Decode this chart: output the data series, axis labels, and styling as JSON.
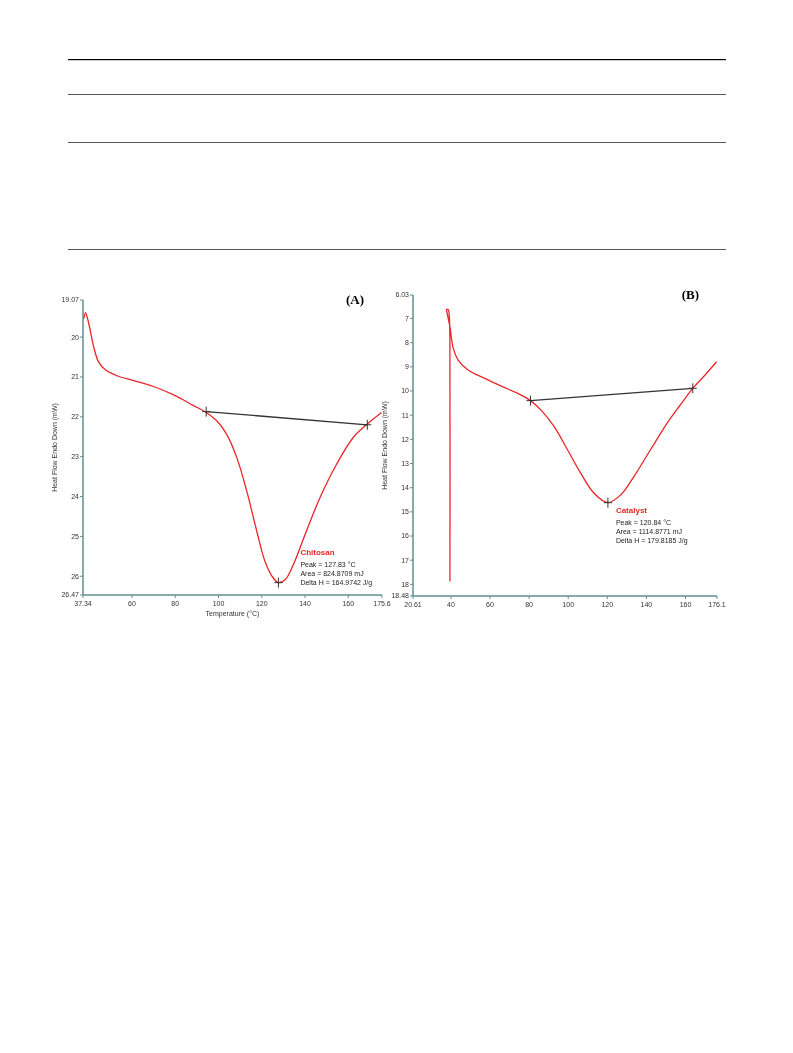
{
  "chart_data": [
    {
      "type": "line",
      "title": "(A)",
      "xlabel": "Temperature (°C)",
      "ylabel": "Heat Flow Endo Down (mW)",
      "xlim": [
        37.34,
        175.6
      ],
      "xticks": [
        37.34,
        60,
        80,
        100,
        120,
        140,
        160,
        175.6
      ],
      "ylim": [
        26.47,
        19.07
      ],
      "yticks": [
        19.07,
        20,
        21,
        22,
        23,
        24,
        25,
        26,
        26.47
      ],
      "grid": false,
      "annotations": [
        "Chitosan",
        "Peak = 127.83 °C",
        "Area = 824.8709 mJ",
        "Delta H = 164.9742 J/g"
      ],
      "series": [
        {
          "color": "#e8262a",
          "marker": "none",
          "x": [
            37.7,
            38.5,
            40.0,
            42.3,
            44.6,
            47.7,
            53.1,
            60.8,
            70.0,
            80,
            88.5,
            94.3,
            99.2,
            103.8,
            108.5,
            113.1,
            117.7,
            121.5,
            125.4,
            127.7,
            130.8,
            134.6,
            140,
            146.9,
            154.6,
            162.3,
            168.8,
            175.4
          ],
          "values": [
            19.54,
            19.39,
            19.66,
            20.25,
            20.63,
            20.82,
            20.97,
            21.09,
            21.24,
            21.47,
            21.72,
            21.89,
            22.1,
            22.44,
            23.03,
            23.87,
            24.87,
            25.63,
            26.05,
            26.16,
            26.09,
            25.71,
            24.96,
            24.03,
            23.19,
            22.52,
            22.18,
            21.89
          ]
        },
        {
          "color": "#333333",
          "marker": "cross",
          "x": [
            94.3,
            168.8
          ],
          "values": [
            21.87,
            22.2
          ]
        },
        {
          "type": "scatter",
          "color": "#333333",
          "marker": "cross",
          "x": [
            127.7
          ],
          "values": [
            26.16
          ]
        }
      ]
    },
    {
      "type": "line",
      "title": "(B)",
      "ylabel": "Heat Flow Endo Down (mW)",
      "xlim": [
        20.61,
        176.1
      ],
      "xticks": [
        20.61,
        40,
        60,
        80,
        100,
        120,
        140,
        160,
        176.1
      ],
      "ylim": [
        18.48,
        6.03
      ],
      "yticks": [
        6.03,
        7,
        8,
        9,
        10,
        11,
        12,
        13,
        14,
        15,
        16,
        17,
        18,
        18.48
      ],
      "grid": false,
      "annotations": [
        "Catalyst",
        "Peak = 120.84 °C",
        "Area = 1114.8771 mJ",
        "Delta H = 179.8185 J/g"
      ],
      "series": [
        {
          "color": "#e8262a",
          "marker": "none",
          "x": [
            39.5,
            39.5,
            39.2,
            38.6,
            37.8,
            38.1,
            39.5,
            41.2,
            43.7,
            48.8,
            57.3,
            65.8,
            74.2,
            80.7,
            86.1,
            92.9,
            99.7,
            106.4,
            113.2,
            120.3,
            126.8,
            133.6,
            142.0,
            150.5,
            157.3,
            163.7,
            169.2,
            175.9
          ],
          "values": [
            17.88,
            9.55,
            6.93,
            6.63,
            6.63,
            6.79,
            7.34,
            8.24,
            8.72,
            9.13,
            9.48,
            9.8,
            10.1,
            10.4,
            10.79,
            11.48,
            12.44,
            13.4,
            14.23,
            14.62,
            14.3,
            13.54,
            12.44,
            11.34,
            10.58,
            9.89,
            9.41,
            8.79
          ]
        },
        {
          "color": "#333333",
          "marker": "cross",
          "x": [
            80.7,
            163.7
          ],
          "values": [
            10.4,
            9.89
          ]
        },
        {
          "type": "scatter",
          "color": "#333333",
          "marker": "cross",
          "x": [
            120.3
          ],
          "values": [
            14.62
          ]
        }
      ]
    }
  ]
}
